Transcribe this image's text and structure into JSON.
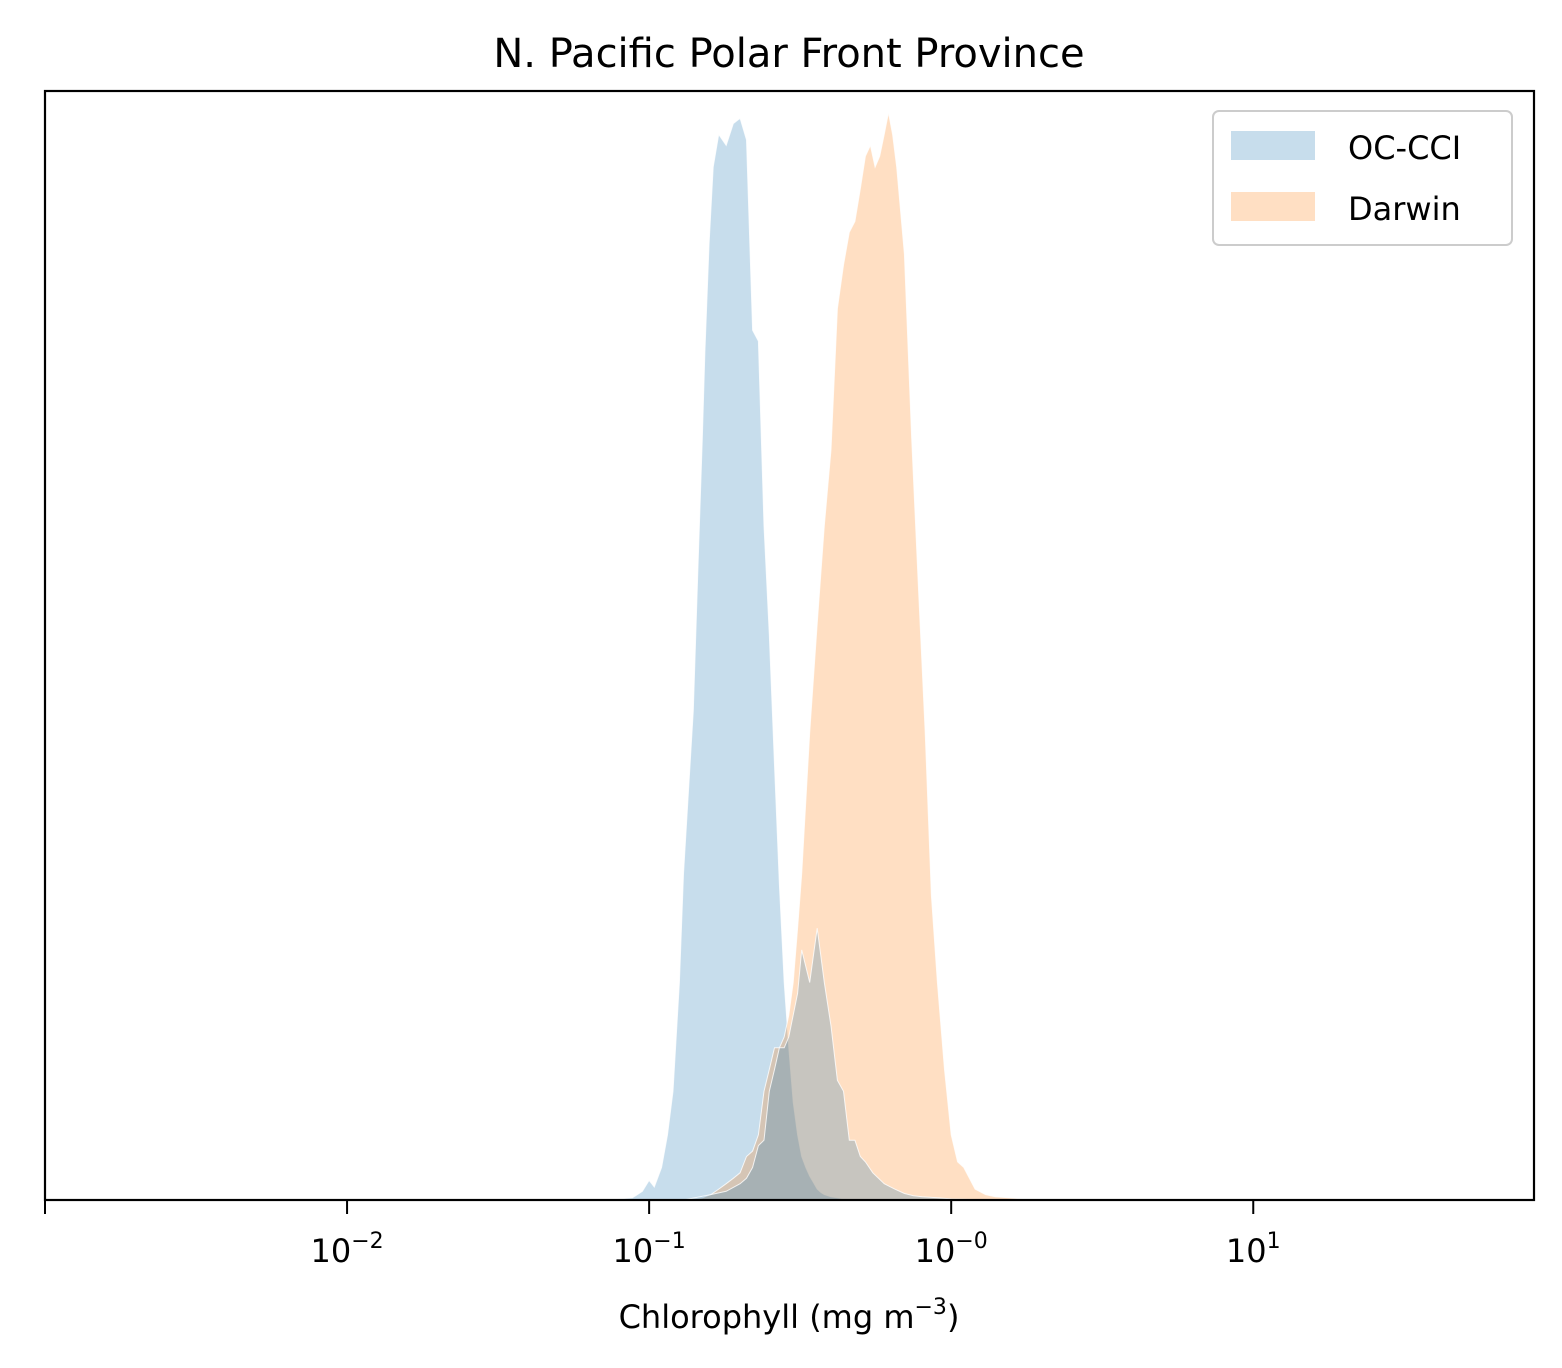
{
  "chart_data": {
    "type": "area",
    "title": "N. Pacific Polar Front Province",
    "xlabel": "Chlorophyll  (mg m",
    "xlabel_sup": "−3",
    "xlabel_close": ")",
    "ylabel": "",
    "xscale": "log",
    "xlim": [
      0.001,
      85
    ],
    "ylim": [
      0,
      1.02
    ],
    "yticks_visible": false,
    "grid": false,
    "legend_position": "top-right",
    "xticks": [
      {
        "value": 0.01,
        "base": "10",
        "exp": "−2"
      },
      {
        "value": 0.1,
        "base": "10",
        "exp": "−1"
      },
      {
        "value": 1,
        "base": "10",
        "exp": "−0"
      },
      {
        "value": 10,
        "base": "10",
        "exp": "1"
      }
    ],
    "series": [
      {
        "name": "OC-CCI",
        "color": "#1f77b4",
        "alpha": 0.25,
        "x": [
          0.07,
          0.08,
          0.088,
          0.095,
          0.1,
          0.104,
          0.11,
          0.115,
          0.12,
          0.126,
          0.13,
          0.14,
          0.145,
          0.15,
          0.153,
          0.158,
          0.163,
          0.17,
          0.18,
          0.19,
          0.2,
          0.21,
          0.22,
          0.23,
          0.24,
          0.25,
          0.26,
          0.27,
          0.28,
          0.29,
          0.3,
          0.31,
          0.32,
          0.33,
          0.34,
          0.35,
          0.36,
          0.37,
          0.38,
          0.39,
          0.4,
          0.42,
          0.44,
          0.47,
          0.5,
          0.55,
          0.6,
          0.7,
          0.8,
          0.9,
          1.0
        ],
        "y": [
          0.0,
          0.001,
          0.002,
          0.008,
          0.018,
          0.012,
          0.03,
          0.06,
          0.1,
          0.2,
          0.3,
          0.45,
          0.58,
          0.7,
          0.78,
          0.88,
          0.95,
          0.98,
          0.97,
          0.99,
          0.995,
          0.975,
          0.8,
          0.79,
          0.62,
          0.52,
          0.4,
          0.29,
          0.2,
          0.14,
          0.09,
          0.06,
          0.04,
          0.03,
          0.022,
          0.016,
          0.01,
          0.007,
          0.005,
          0.004,
          0.003,
          0.002,
          0.001,
          0.0008,
          0.0005,
          0.0003,
          0.0002,
          0.0001,
          0.0,
          0.0,
          0.0
        ]
      },
      {
        "name": "Darwin",
        "color": "#ff7f0e",
        "alpha": 0.25,
        "x": [
          0.13,
          0.15,
          0.16,
          0.17,
          0.18,
          0.19,
          0.2,
          0.21,
          0.22,
          0.23,
          0.24,
          0.25,
          0.26,
          0.27,
          0.28,
          0.29,
          0.3,
          0.31,
          0.32,
          0.34,
          0.36,
          0.38,
          0.4,
          0.42,
          0.44,
          0.46,
          0.48,
          0.5,
          0.52,
          0.54,
          0.56,
          0.58,
          0.6,
          0.62,
          0.64,
          0.66,
          0.7,
          0.74,
          0.78,
          0.82,
          0.86,
          0.9,
          0.95,
          1.0,
          1.05,
          1.1,
          1.2,
          1.3,
          1.4,
          1.55,
          1.7,
          1.9
        ],
        "y": [
          0.0,
          0.002,
          0.005,
          0.01,
          0.015,
          0.02,
          0.025,
          0.04,
          0.045,
          0.06,
          0.1,
          0.12,
          0.14,
          0.14,
          0.15,
          0.17,
          0.2,
          0.25,
          0.3,
          0.43,
          0.53,
          0.62,
          0.69,
          0.82,
          0.86,
          0.89,
          0.9,
          0.93,
          0.96,
          0.97,
          0.95,
          0.96,
          0.98,
          1.0,
          0.98,
          0.95,
          0.87,
          0.7,
          0.56,
          0.43,
          0.28,
          0.2,
          0.12,
          0.06,
          0.035,
          0.03,
          0.01,
          0.005,
          0.003,
          0.002,
          0.001,
          0.0
        ]
      },
      {
        "name": "",
        "color": "#1f77b4",
        "alpha": 0.25,
        "x": [
          0.13,
          0.16,
          0.18,
          0.2,
          0.21,
          0.22,
          0.23,
          0.24,
          0.25,
          0.26,
          0.27,
          0.28,
          0.29,
          0.3,
          0.31,
          0.32,
          0.34,
          0.36,
          0.38,
          0.4,
          0.42,
          0.44,
          0.46,
          0.48,
          0.5,
          0.52,
          0.55,
          0.6,
          0.65,
          0.7,
          0.75,
          0.8,
          0.9,
          1.0,
          1.2,
          1.4
        ],
        "y": [
          0.0,
          0.005,
          0.008,
          0.015,
          0.02,
          0.03,
          0.05,
          0.055,
          0.1,
          0.12,
          0.14,
          0.14,
          0.15,
          0.17,
          0.19,
          0.23,
          0.2,
          0.25,
          0.2,
          0.16,
          0.11,
          0.1,
          0.055,
          0.055,
          0.04,
          0.035,
          0.025,
          0.015,
          0.01,
          0.006,
          0.004,
          0.003,
          0.002,
          0.001,
          0.0005,
          0.0
        ]
      }
    ]
  }
}
